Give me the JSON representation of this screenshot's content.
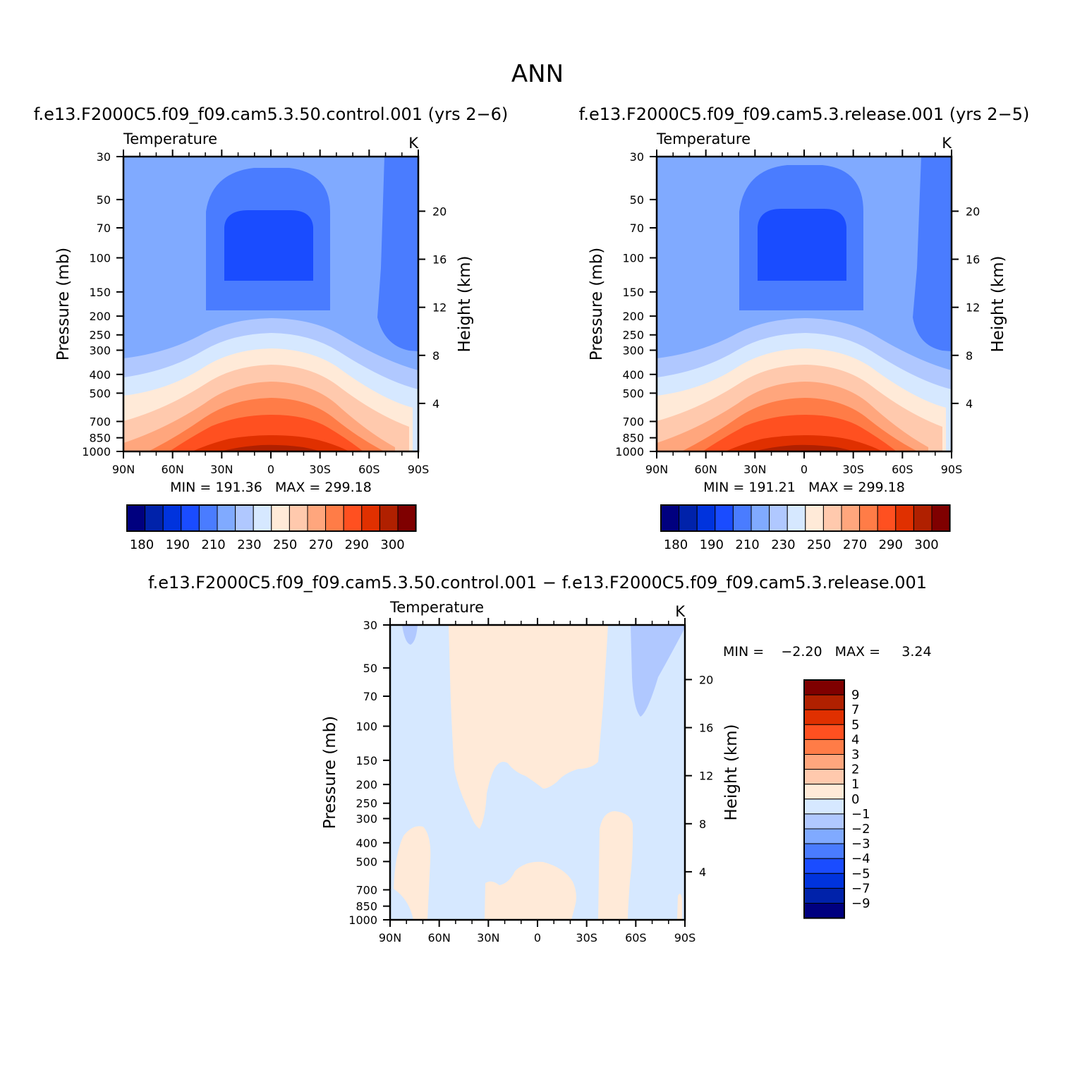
{
  "figure_title": "ANN",
  "chart_data": [
    {
      "id": "control",
      "type": "heatmap",
      "subtitle": "f.e13.F2000C5.f09_f09.cam5.3.50.control.001 (yrs 2−6)",
      "left_string": "Temperature",
      "units": "K",
      "ylabel": "Pressure (mb)",
      "ylabel_right": "Height (km)",
      "x_ticks": [
        "90N",
        "60N",
        "30N",
        "0",
        "30S",
        "60S",
        "90S"
      ],
      "x_range": [
        90,
        -90
      ],
      "y_ticks": [
        30,
        50,
        70,
        100,
        150,
        200,
        250,
        300,
        400,
        500,
        700,
        850,
        1000
      ],
      "y_range": [
        30,
        1000
      ],
      "height_ticks": [
        4,
        8,
        12,
        16,
        20
      ],
      "min_max_text": "MIN = 191.36   MAX = 299.18",
      "min": 191.36,
      "max": 299.18,
      "colorbar_labels": [
        "180",
        "190",
        "210",
        "230",
        "250",
        "270",
        "290",
        "300"
      ]
    },
    {
      "id": "release",
      "type": "heatmap",
      "subtitle": "f.e13.F2000C5.f09_f09.cam5.3.release.001 (yrs 2−5)",
      "left_string": "Temperature",
      "units": "K",
      "ylabel": "Pressure (mb)",
      "ylabel_right": "Height (km)",
      "x_ticks": [
        "90N",
        "60N",
        "30N",
        "0",
        "30S",
        "60S",
        "90S"
      ],
      "x_range": [
        90,
        -90
      ],
      "y_ticks": [
        30,
        50,
        70,
        100,
        150,
        200,
        250,
        300,
        400,
        500,
        700,
        850,
        1000
      ],
      "y_range": [
        30,
        1000
      ],
      "height_ticks": [
        4,
        8,
        12,
        16,
        20
      ],
      "min_max_text": "MIN = 191.21   MAX = 299.18",
      "min": 191.21,
      "max": 299.18,
      "colorbar_labels": [
        "180",
        "190",
        "210",
        "230",
        "250",
        "270",
        "290",
        "300"
      ]
    },
    {
      "id": "difference",
      "type": "heatmap",
      "subtitle": "f.e13.F2000C5.f09_f09.cam5.3.50.control.001 − f.e13.F2000C5.f09_f09.cam5.3.release.001",
      "left_string": "Temperature",
      "units": "K",
      "ylabel": "Pressure (mb)",
      "ylabel_right": "Height (km)",
      "x_ticks": [
        "90N",
        "60N",
        "30N",
        "0",
        "30S",
        "60S",
        "90S"
      ],
      "x_range": [
        90,
        -90
      ],
      "y_ticks": [
        30,
        50,
        70,
        100,
        150,
        200,
        250,
        300,
        400,
        500,
        700,
        850,
        1000
      ],
      "y_range": [
        30,
        1000
      ],
      "height_ticks": [
        4,
        8,
        12,
        16,
        20
      ],
      "min_max_text": "MIN =    −2.20   MAX =     3.24",
      "min": -2.2,
      "max": 3.24,
      "colorbar_labels": [
        "9",
        "7",
        "5",
        "4",
        "3",
        "2",
        "1",
        "0",
        "−1",
        "−2",
        "−3",
        "−4",
        "−5",
        "−7",
        "−9"
      ]
    }
  ],
  "colors": {
    "palette": [
      "#00007f",
      "#0022aa",
      "#0033dd",
      "#1a4cff",
      "#4a7cff",
      "#80aaff",
      "#b0c8ff",
      "#d6e8ff",
      "#ffead8",
      "#ffc9ad",
      "#ffa67d",
      "#ff7c47",
      "#ff5020",
      "#e03000",
      "#b02000",
      "#7f0000"
    ]
  }
}
